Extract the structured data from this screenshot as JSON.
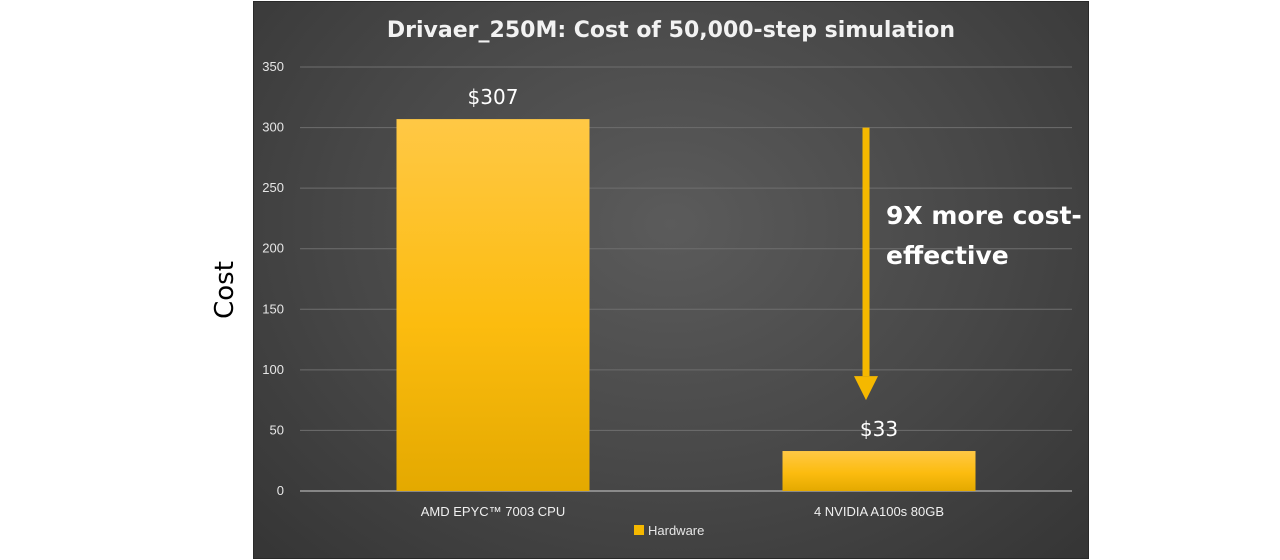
{
  "chart_data": {
    "type": "bar",
    "title": "Drivaer_250M: Cost of 50,000-step simulation",
    "ylabel": "Cost",
    "xlabel": "",
    "categories": [
      "AMD EPYC™ 7003 CPU",
      "4 NVIDIA A100s 80GB"
    ],
    "series": [
      {
        "name": "Hardware",
        "values": [
          307,
          33
        ],
        "color": "#f5b800"
      }
    ],
    "data_labels": [
      "$307",
      "$33"
    ],
    "ylim": [
      0,
      350
    ],
    "yticks": [
      0,
      50,
      100,
      150,
      200,
      250,
      300,
      350
    ],
    "grid": true,
    "legend_position": "bottom",
    "annotation": {
      "lines": [
        "9X more cost-",
        "effective"
      ],
      "arrow_from": 300,
      "arrow_to": 75,
      "color": "#f5b800"
    },
    "background": "#474747"
  }
}
